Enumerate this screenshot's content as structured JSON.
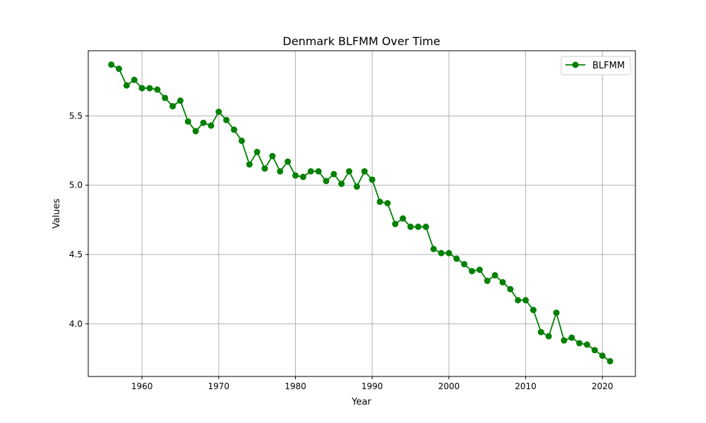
{
  "chart_data": {
    "type": "line",
    "title": "Denmark BLFMM Over Time",
    "xlabel": "Year",
    "ylabel": "Values",
    "xlim": [
      1953,
      2024.3
    ],
    "ylim": [
      3.62,
      5.97
    ],
    "xticks": [
      1960,
      1970,
      1980,
      1990,
      2000,
      2010,
      2020
    ],
    "yticks": [
      4.0,
      4.5,
      5.0,
      5.5
    ],
    "ytick_labels": [
      "4.0",
      "4.5",
      "5.0",
      "5.5"
    ],
    "grid": true,
    "legend_position": "top-right",
    "series": [
      {
        "name": "BLFMM",
        "color": "#008000",
        "marker": "circle",
        "x": [
          1956,
          1957,
          1958,
          1959,
          1960,
          1961,
          1962,
          1963,
          1964,
          1965,
          1966,
          1967,
          1968,
          1969,
          1970,
          1971,
          1972,
          1973,
          1974,
          1975,
          1976,
          1977,
          1978,
          1979,
          1980,
          1981,
          1982,
          1983,
          1984,
          1985,
          1986,
          1987,
          1988,
          1989,
          1990,
          1991,
          1992,
          1993,
          1994,
          1995,
          1996,
          1997,
          1998,
          1999,
          2000,
          2001,
          2002,
          2003,
          2004,
          2005,
          2006,
          2007,
          2008,
          2009,
          2010,
          2011,
          2012,
          2013,
          2014,
          2015,
          2016,
          2017,
          2018,
          2019,
          2020,
          2021
        ],
        "y": [
          5.87,
          5.84,
          5.72,
          5.76,
          5.7,
          5.7,
          5.69,
          5.63,
          5.57,
          5.61,
          5.46,
          5.39,
          5.45,
          5.43,
          5.53,
          5.47,
          5.4,
          5.32,
          5.15,
          5.24,
          5.12,
          5.21,
          5.1,
          5.17,
          5.07,
          5.06,
          5.1,
          5.1,
          5.03,
          5.08,
          5.01,
          5.1,
          4.99,
          5.1,
          5.04,
          4.88,
          4.87,
          4.72,
          4.76,
          4.7,
          4.7,
          4.7,
          4.54,
          4.51,
          4.51,
          4.47,
          4.43,
          4.38,
          4.39,
          4.31,
          4.35,
          4.3,
          4.25,
          4.17,
          4.17,
          4.1,
          3.94,
          3.91,
          4.08,
          3.88,
          3.9,
          3.86,
          3.85,
          3.81,
          3.77,
          3.73
        ]
      }
    ]
  }
}
